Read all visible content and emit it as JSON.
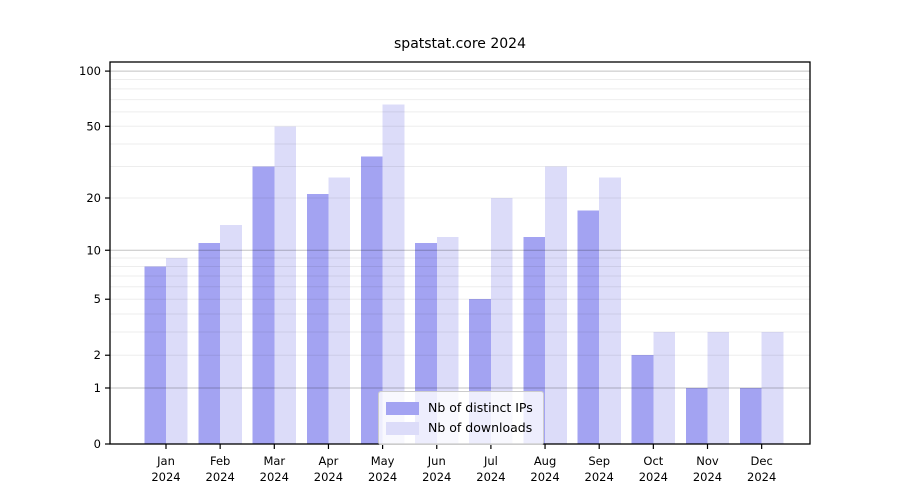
{
  "chart_data": {
    "type": "bar",
    "title": "spatstat.core 2024",
    "categories": [
      "Jan",
      "Feb",
      "Mar",
      "Apr",
      "May",
      "Jun",
      "Jul",
      "Aug",
      "Sep",
      "Oct",
      "Nov",
      "Dec"
    ],
    "year_label": "2024",
    "series": [
      {
        "name": "Nb of distinct IPs",
        "color": "#a3a3f2",
        "values": [
          8,
          11,
          30,
          21,
          34,
          11,
          5,
          12,
          17,
          2,
          1,
          1
        ]
      },
      {
        "name": "Nb of downloads",
        "color": "#dcdcf9",
        "values": [
          9,
          14,
          50,
          26,
          66,
          12,
          20,
          30,
          26,
          3,
          3,
          3
        ]
      }
    ],
    "yticks": [
      0,
      1,
      2,
      5,
      10,
      20,
      50,
      100
    ],
    "minor_gridlines": [
      2,
      3,
      4,
      5,
      6,
      7,
      8,
      9,
      20,
      30,
      40,
      50,
      60,
      70,
      80,
      90
    ],
    "major_gridlines": [
      1,
      10,
      100
    ],
    "scale": "log1p",
    "ylim": [
      0,
      112
    ],
    "xlabel": "",
    "ylabel": "",
    "grid": true,
    "legend_position": "lower center",
    "frame_color": "#000000",
    "background_color": "#ffffff"
  }
}
